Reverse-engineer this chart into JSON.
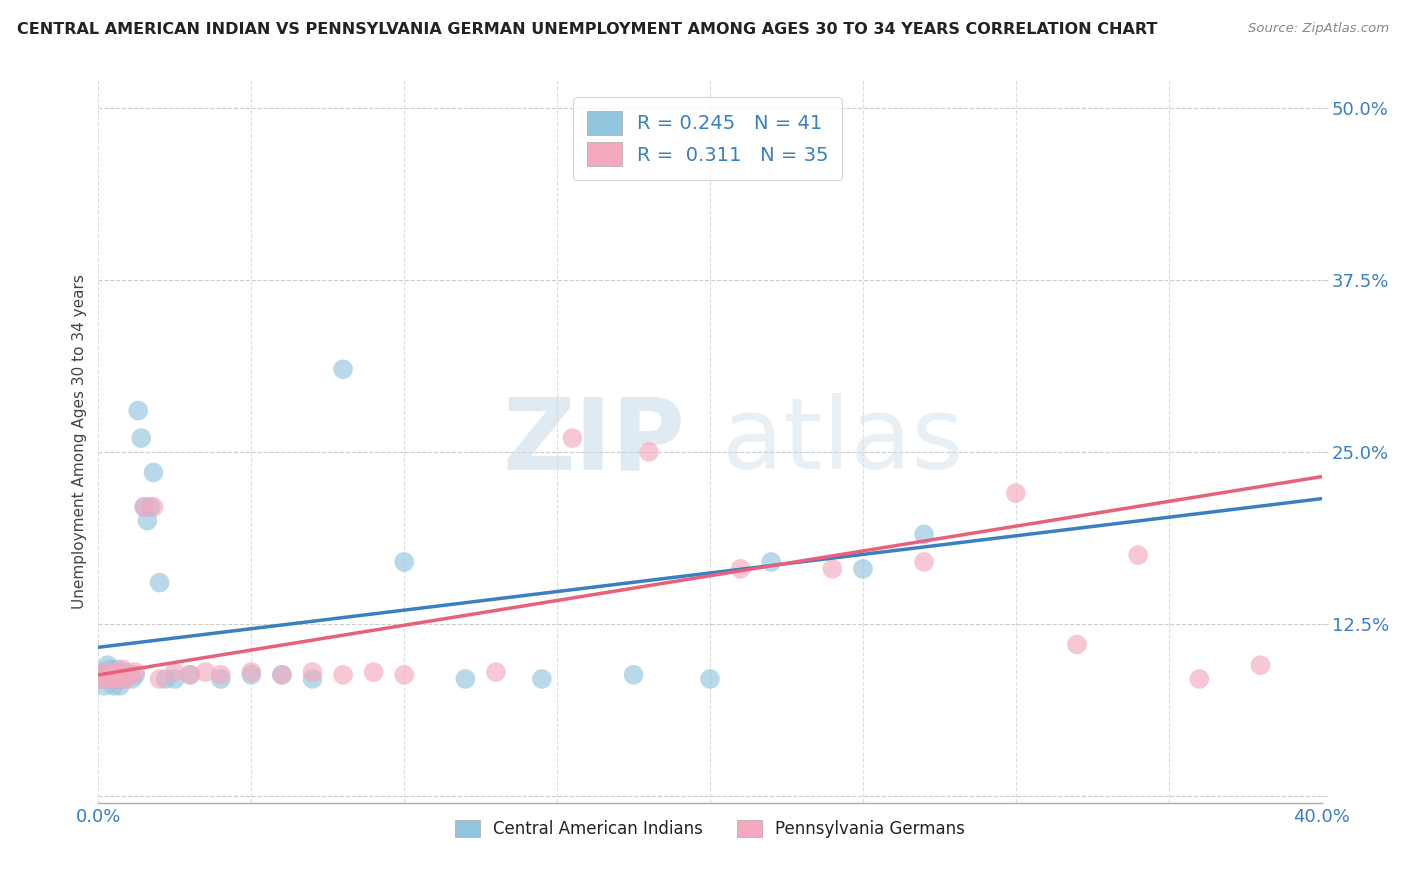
{
  "title": "CENTRAL AMERICAN INDIAN VS PENNSYLVANIA GERMAN UNEMPLOYMENT AMONG AGES 30 TO 34 YEARS CORRELATION CHART",
  "source": "Source: ZipAtlas.com",
  "xlim": [
    0.0,
    0.4
  ],
  "ylim": [
    -0.005,
    0.52
  ],
  "yticks": [
    0.0,
    0.125,
    0.25,
    0.375,
    0.5
  ],
  "ytick_labels": [
    "",
    "12.5%",
    "25.0%",
    "37.5%",
    "50.0%"
  ],
  "xticks": [
    0.0,
    0.05,
    0.1,
    0.15,
    0.2,
    0.25,
    0.3,
    0.35,
    0.4
  ],
  "xtick_labels": [
    "0.0%",
    "",
    "",
    "",
    "",
    "",
    "",
    "",
    "40.0%"
  ],
  "blue_color": "#92c5de",
  "pink_color": "#f4a9be",
  "trend_blue": "#3a7fc1",
  "trend_pink": "#e8607a",
  "legend_r1": "R = 0.245",
  "legend_n1": "N = 41",
  "legend_r2": "R =  0.311",
  "legend_n2": "N = 35",
  "watermark_zip": "ZIP",
  "watermark_atlas": "atlas",
  "ylabel": "Unemployment Among Ages 30 to 34 years",
  "blue_x": [
    0.001,
    0.002,
    0.002,
    0.003,
    0.003,
    0.004,
    0.004,
    0.005,
    0.005,
    0.006,
    0.006,
    0.007,
    0.007,
    0.008,
    0.009,
    0.01,
    0.011,
    0.012,
    0.013,
    0.014,
    0.015,
    0.016,
    0.017,
    0.018,
    0.02,
    0.022,
    0.025,
    0.03,
    0.04,
    0.05,
    0.06,
    0.07,
    0.08,
    0.1,
    0.12,
    0.145,
    0.175,
    0.2,
    0.22,
    0.25,
    0.27
  ],
  "blue_y": [
    0.085,
    0.09,
    0.08,
    0.095,
    0.088,
    0.092,
    0.085,
    0.088,
    0.08,
    0.092,
    0.085,
    0.088,
    0.08,
    0.085,
    0.09,
    0.088,
    0.085,
    0.088,
    0.28,
    0.26,
    0.21,
    0.2,
    0.21,
    0.235,
    0.155,
    0.085,
    0.085,
    0.088,
    0.085,
    0.088,
    0.088,
    0.085,
    0.31,
    0.17,
    0.085,
    0.085,
    0.088,
    0.085,
    0.17,
    0.165,
    0.19
  ],
  "pink_x": [
    0.001,
    0.002,
    0.003,
    0.004,
    0.005,
    0.006,
    0.007,
    0.008,
    0.009,
    0.01,
    0.012,
    0.015,
    0.018,
    0.02,
    0.025,
    0.03,
    0.035,
    0.04,
    0.05,
    0.06,
    0.07,
    0.08,
    0.09,
    0.1,
    0.13,
    0.155,
    0.18,
    0.21,
    0.24,
    0.27,
    0.3,
    0.32,
    0.34,
    0.36,
    0.38
  ],
  "pink_y": [
    0.085,
    0.09,
    0.085,
    0.088,
    0.085,
    0.09,
    0.085,
    0.092,
    0.085,
    0.088,
    0.09,
    0.21,
    0.21,
    0.085,
    0.09,
    0.088,
    0.09,
    0.088,
    0.09,
    0.088,
    0.09,
    0.088,
    0.09,
    0.088,
    0.09,
    0.26,
    0.25,
    0.165,
    0.165,
    0.17,
    0.22,
    0.11,
    0.175,
    0.085,
    0.095
  ],
  "trend_blue_intercept": 0.108,
  "trend_blue_slope": 0.27,
  "trend_pink_intercept": 0.088,
  "trend_pink_slope": 0.36
}
